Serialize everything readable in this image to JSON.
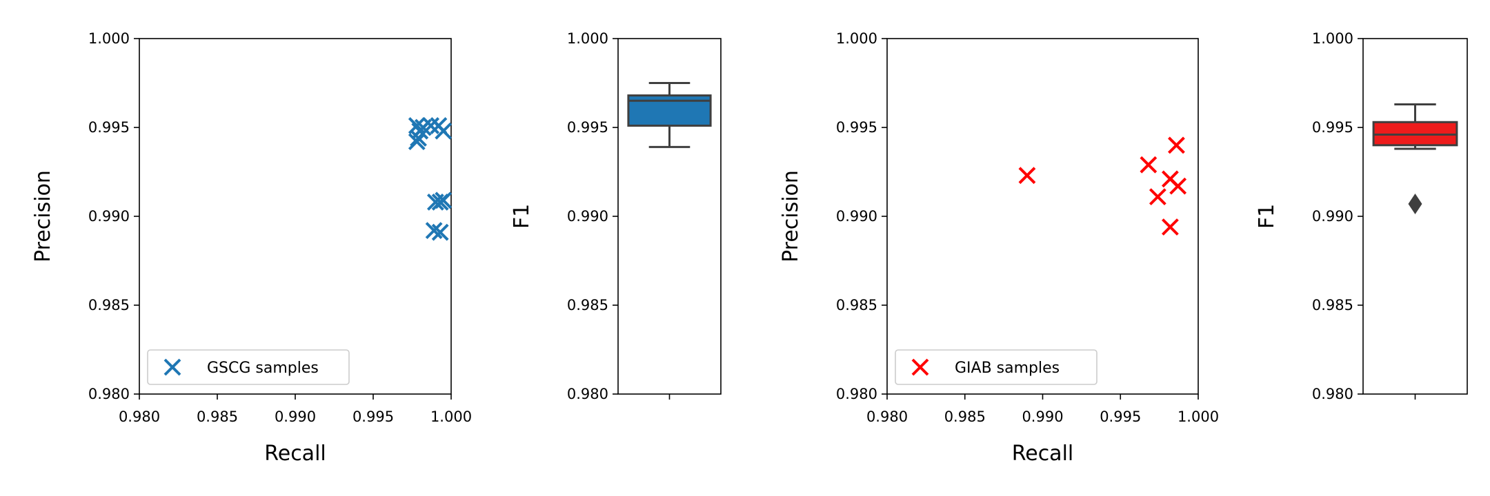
{
  "chart_data": [
    {
      "type": "scatter",
      "xlabel": "Recall",
      "ylabel": "Precision",
      "xlim": [
        0.98,
        1.0
      ],
      "ylim": [
        0.98,
        1.0
      ],
      "xticks": [
        "0.980",
        "0.985",
        "0.990",
        "0.995",
        "1.000"
      ],
      "yticks": [
        "0.980",
        "0.985",
        "0.990",
        "0.995",
        "1.000"
      ],
      "legend_placement": "lower-left",
      "marker": "x",
      "color": "#1f77b4",
      "series": [
        {
          "name": "GSCG samples",
          "points": [
            {
              "x": 0.9978,
              "y": 0.9951
            },
            {
              "x": 0.998,
              "y": 0.9948
            },
            {
              "x": 0.9982,
              "y": 0.995
            },
            {
              "x": 0.9979,
              "y": 0.9944
            },
            {
              "x": 0.9978,
              "y": 0.9942
            },
            {
              "x": 0.9987,
              "y": 0.9951
            },
            {
              "x": 0.9992,
              "y": 0.9951
            },
            {
              "x": 0.9995,
              "y": 0.9948
            },
            {
              "x": 0.999,
              "y": 0.9908
            },
            {
              "x": 0.9993,
              "y": 0.9908
            },
            {
              "x": 0.9995,
              "y": 0.9909
            },
            {
              "x": 0.9989,
              "y": 0.9892
            },
            {
              "x": 0.9993,
              "y": 0.9891
            }
          ]
        }
      ]
    },
    {
      "type": "box",
      "ylabel": "F1",
      "ylim": [
        0.98,
        1.0
      ],
      "yticks": [
        "0.980",
        "0.985",
        "0.990",
        "0.995",
        "1.000"
      ],
      "color": "#1f77b4",
      "box": {
        "whisker_low": 0.9939,
        "q1": 0.9951,
        "median": 0.9965,
        "q3": 0.9968,
        "whisker_high": 0.9975,
        "outliers": []
      }
    },
    {
      "type": "scatter",
      "xlabel": "Recall",
      "ylabel": "Precision",
      "xlim": [
        0.98,
        1.0
      ],
      "ylim": [
        0.98,
        1.0
      ],
      "xticks": [
        "0.980",
        "0.985",
        "0.990",
        "0.995",
        "1.000"
      ],
      "yticks": [
        "0.980",
        "0.985",
        "0.990",
        "0.995",
        "1.000"
      ],
      "legend_placement": "lower-left",
      "marker": "x",
      "color": "#ff0000",
      "series": [
        {
          "name": "GIAB samples",
          "points": [
            {
              "x": 0.989,
              "y": 0.9923
            },
            {
              "x": 0.9968,
              "y": 0.9929
            },
            {
              "x": 0.9974,
              "y": 0.9911
            },
            {
              "x": 0.9982,
              "y": 0.9921
            },
            {
              "x": 0.9982,
              "y": 0.9894
            },
            {
              "x": 0.9986,
              "y": 0.994
            },
            {
              "x": 0.9987,
              "y": 0.9917
            }
          ]
        }
      ]
    },
    {
      "type": "box",
      "ylabel": "F1",
      "ylim": [
        0.98,
        1.0
      ],
      "yticks": [
        "0.980",
        "0.985",
        "0.990",
        "0.995",
        "1.000"
      ],
      "color": "#ee1c1c",
      "box": {
        "whisker_low": 0.9938,
        "q1": 0.994,
        "median": 0.9946,
        "q3": 0.9953,
        "whisker_high": 0.9963,
        "outliers": [
          0.9907
        ]
      }
    }
  ]
}
